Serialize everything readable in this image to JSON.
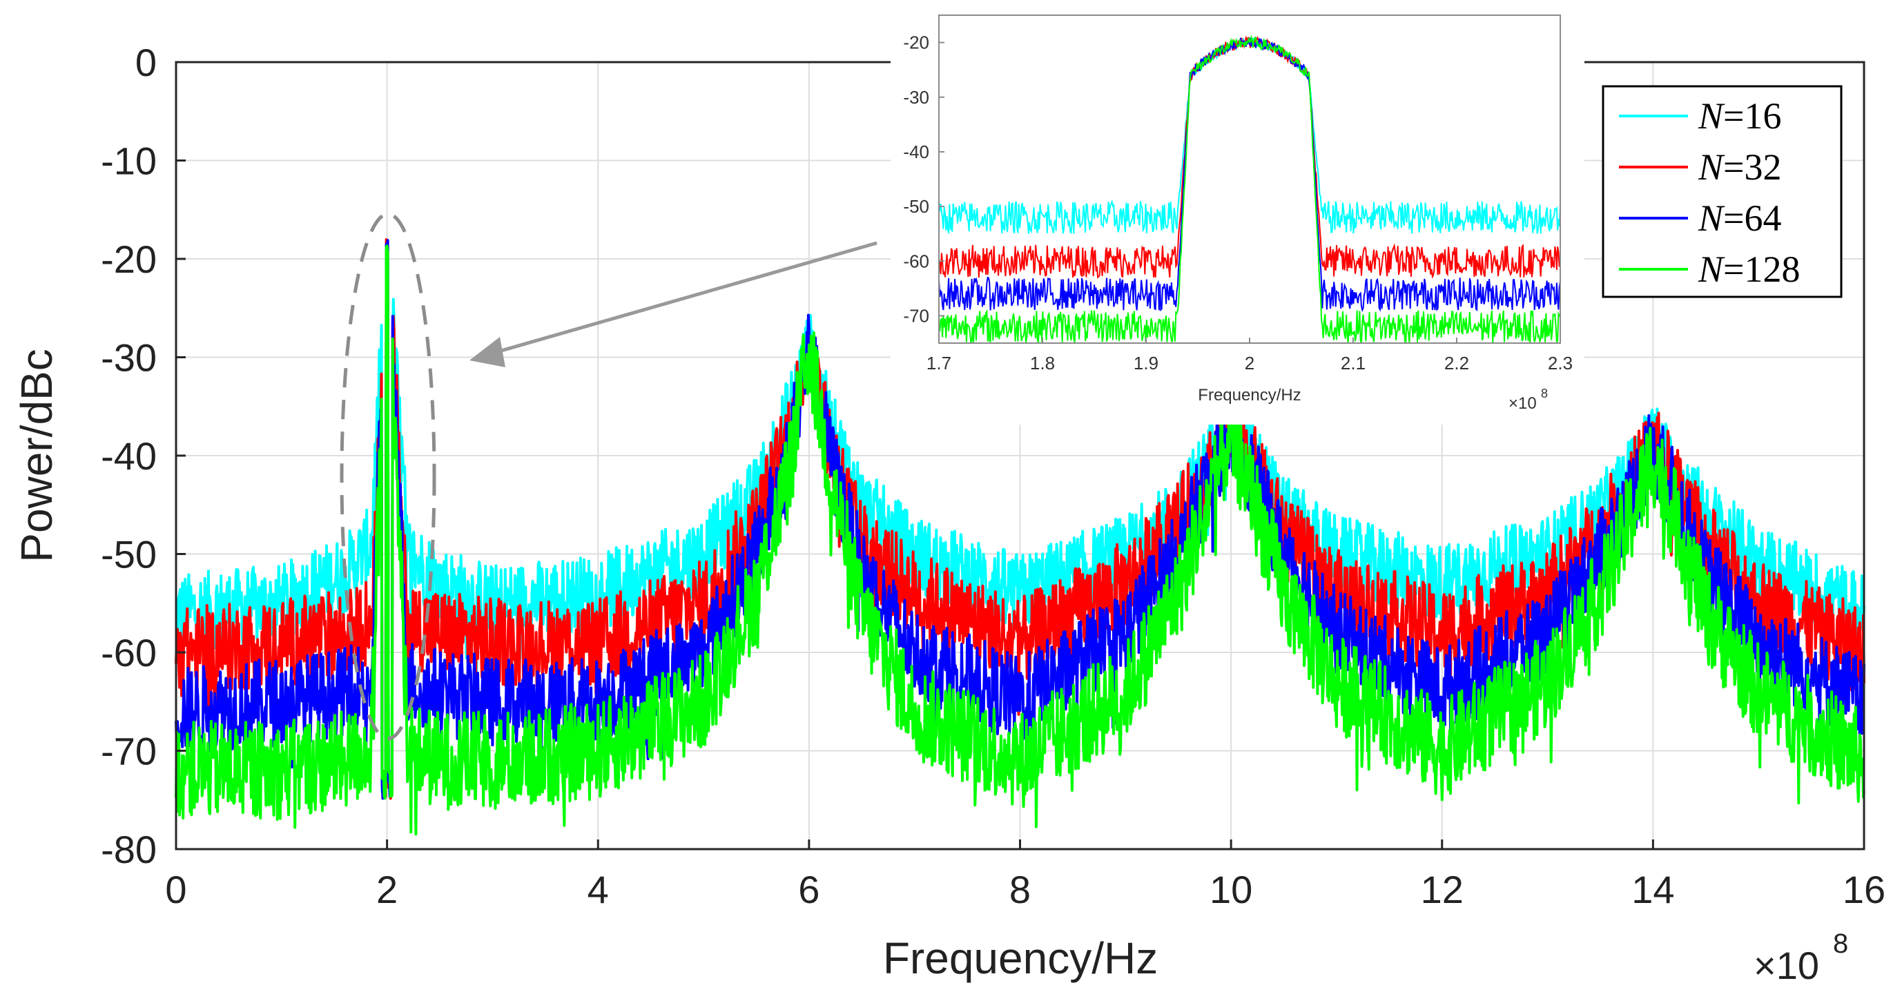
{
  "chart_data": [
    {
      "type": "line",
      "title": "",
      "xlabel": "Frequency/Hz",
      "ylabel": "Power/dBc",
      "x_multiplier": "×10",
      "x_multiplier_exp": "8",
      "xlim": [
        0,
        16
      ],
      "ylim": [
        -80,
        0
      ],
      "xticks": [
        0,
        2,
        4,
        6,
        8,
        10,
        12,
        14,
        16
      ],
      "xtick_labels": [
        "0",
        "2",
        "4",
        "6",
        "8",
        "10",
        "12",
        "14",
        "16"
      ],
      "yticks": [
        0,
        -10,
        -20,
        -30,
        -40,
        -50,
        -60,
        -70,
        -80
      ],
      "ytick_labels": [
        "0",
        "-10",
        "-20",
        "-30",
        "-40",
        "-50",
        "-60",
        "-70",
        "-80"
      ],
      "grid": true,
      "series": [
        {
          "name": "N=16",
          "color": "#00ffff",
          "noise_floor": -56,
          "points": [
            [
              0,
              -56
            ],
            [
              1,
              -55
            ],
            [
              1.6,
              -52
            ],
            [
              1.85,
              -49
            ],
            [
              2,
              -18
            ],
            [
              2.2,
              -50
            ],
            [
              2.5,
              -53
            ],
            [
              3,
              -55
            ],
            [
              4,
              -54
            ],
            [
              5,
              -50
            ],
            [
              5.5,
              -44
            ],
            [
              5.8,
              -36
            ],
            [
              6,
              -29
            ],
            [
              6.2,
              -37
            ],
            [
              6.5,
              -45
            ],
            [
              7,
              -50
            ],
            [
              8,
              -54
            ],
            [
              9,
              -50
            ],
            [
              9.5,
              -46
            ],
            [
              9.8,
              -40
            ],
            [
              10,
              -36
            ],
            [
              10.2,
              -40
            ],
            [
              10.5,
              -46
            ],
            [
              11,
              -50
            ],
            [
              12,
              -53
            ],
            [
              13,
              -50
            ],
            [
              13.5,
              -46
            ],
            [
              13.8,
              -42
            ],
            [
              14,
              -38
            ],
            [
              14.2,
              -42
            ],
            [
              14.5,
              -46
            ],
            [
              15,
              -51
            ],
            [
              16,
              -56
            ]
          ]
        },
        {
          "name": "N=32",
          "color": "#ff0000",
          "noise_floor": -60,
          "points": [
            [
              0,
              -60
            ],
            [
              1,
              -59
            ],
            [
              1.6,
              -58
            ],
            [
              1.85,
              -57
            ],
            [
              2,
              -18
            ],
            [
              2.2,
              -57
            ],
            [
              2.5,
              -58
            ],
            [
              3,
              -59
            ],
            [
              4,
              -59
            ],
            [
              5,
              -55
            ],
            [
              5.5,
              -47
            ],
            [
              5.8,
              -38
            ],
            [
              6,
              -29
            ],
            [
              6.2,
              -39
            ],
            [
              6.5,
              -49
            ],
            [
              7,
              -54
            ],
            [
              8,
              -59
            ],
            [
              9,
              -53
            ],
            [
              9.5,
              -47
            ],
            [
              9.8,
              -41
            ],
            [
              10,
              -37
            ],
            [
              10.2,
              -41
            ],
            [
              10.5,
              -48
            ],
            [
              11,
              -54
            ],
            [
              12,
              -58
            ],
            [
              13,
              -54
            ],
            [
              13.5,
              -48
            ],
            [
              13.8,
              -43
            ],
            [
              14,
              -39
            ],
            [
              14.2,
              -43
            ],
            [
              14.5,
              -49
            ],
            [
              15,
              -55
            ],
            [
              16,
              -60
            ]
          ]
        },
        {
          "name": "N=64",
          "color": "#0000ff",
          "noise_floor": -66,
          "points": [
            [
              0,
              -66
            ],
            [
              1,
              -65
            ],
            [
              1.6,
              -64
            ],
            [
              1.85,
              -63
            ],
            [
              2,
              -18
            ],
            [
              2.2,
              -63
            ],
            [
              2.5,
              -64
            ],
            [
              3,
              -65
            ],
            [
              4,
              -65
            ],
            [
              5,
              -60
            ],
            [
              5.5,
              -50
            ],
            [
              5.8,
              -40
            ],
            [
              6,
              -29
            ],
            [
              6.2,
              -40
            ],
            [
              6.5,
              -52
            ],
            [
              7,
              -60
            ],
            [
              8,
              -65
            ],
            [
              9,
              -58
            ],
            [
              9.5,
              -50
            ],
            [
              9.8,
              -42
            ],
            [
              10,
              -37
            ],
            [
              10.2,
              -42
            ],
            [
              10.5,
              -50
            ],
            [
              11,
              -58
            ],
            [
              12,
              -64
            ],
            [
              13,
              -58
            ],
            [
              13.5,
              -50
            ],
            [
              13.8,
              -44
            ],
            [
              14,
              -39
            ],
            [
              14.2,
              -44
            ],
            [
              14.5,
              -52
            ],
            [
              15,
              -59
            ],
            [
              16,
              -65
            ]
          ]
        },
        {
          "name": "N=128",
          "color": "#00ff00",
          "noise_floor": -72,
          "points": [
            [
              0,
              -72
            ],
            [
              1,
              -72
            ],
            [
              1.6,
              -71
            ],
            [
              1.85,
              -70
            ],
            [
              2,
              -18
            ],
            [
              2.2,
              -70
            ],
            [
              2.5,
              -71
            ],
            [
              3,
              -71
            ],
            [
              4,
              -70
            ],
            [
              5,
              -65
            ],
            [
              5.5,
              -54
            ],
            [
              5.8,
              -42
            ],
            [
              6,
              -29
            ],
            [
              6.2,
              -42
            ],
            [
              6.5,
              -56
            ],
            [
              7,
              -66
            ],
            [
              8,
              -71
            ],
            [
              9,
              -64
            ],
            [
              9.5,
              -54
            ],
            [
              9.8,
              -44
            ],
            [
              10,
              -38
            ],
            [
              10.2,
              -44
            ],
            [
              10.5,
              -54
            ],
            [
              11,
              -63
            ],
            [
              12,
              -70
            ],
            [
              13,
              -63
            ],
            [
              13.5,
              -54
            ],
            [
              13.8,
              -46
            ],
            [
              14,
              -40
            ],
            [
              14.2,
              -46
            ],
            [
              14.5,
              -56
            ],
            [
              15,
              -64
            ],
            [
              16,
              -71
            ]
          ]
        }
      ],
      "legend": {
        "position": "top-right",
        "entries": [
          {
            "var": "N",
            "text": "=16",
            "color": "#00ffff"
          },
          {
            "var": "N",
            "text": "=32",
            "color": "#ff0000"
          },
          {
            "var": "N",
            "text": "=64",
            "color": "#0000ff"
          },
          {
            "var": "N",
            "text": "=128",
            "color": "#00ff00"
          }
        ]
      },
      "annotations": [
        "dashed ellipse around the 2×10^8 Hz peak",
        "arrow from zoom inset to the highlighted peak"
      ]
    },
    {
      "type": "line",
      "role": "inset-zoom",
      "xlabel": "Frequency/Hz",
      "ylabel": "",
      "x_multiplier": "×10",
      "x_multiplier_exp": "8",
      "xlim": [
        1.7,
        2.3
      ],
      "ylim": [
        -75,
        -15
      ],
      "xticks": [
        1.7,
        1.8,
        1.9,
        2.0,
        2.1,
        2.2,
        2.3
      ],
      "xtick_labels": [
        "1.7",
        "1.8",
        "1.9",
        "2",
        "2.1",
        "2.2",
        "2.3"
      ],
      "yticks": [
        -20,
        -30,
        -40,
        -50,
        -60,
        -70
      ],
      "ytick_labels": [
        "-20",
        "-30",
        "-40",
        "-50",
        "-60",
        "-70"
      ],
      "grid": false,
      "band": {
        "start": 1.93,
        "end": 2.07,
        "peak": -20,
        "edge_level": -28
      },
      "series": [
        {
          "name": "N=16",
          "color": "#00ffff",
          "floor": -52
        },
        {
          "name": "N=32",
          "color": "#ff0000",
          "floor": -60
        },
        {
          "name": "N=64",
          "color": "#0000ff",
          "floor": -66
        },
        {
          "name": "N=128",
          "color": "#00ff00",
          "floor": -72
        }
      ]
    }
  ]
}
